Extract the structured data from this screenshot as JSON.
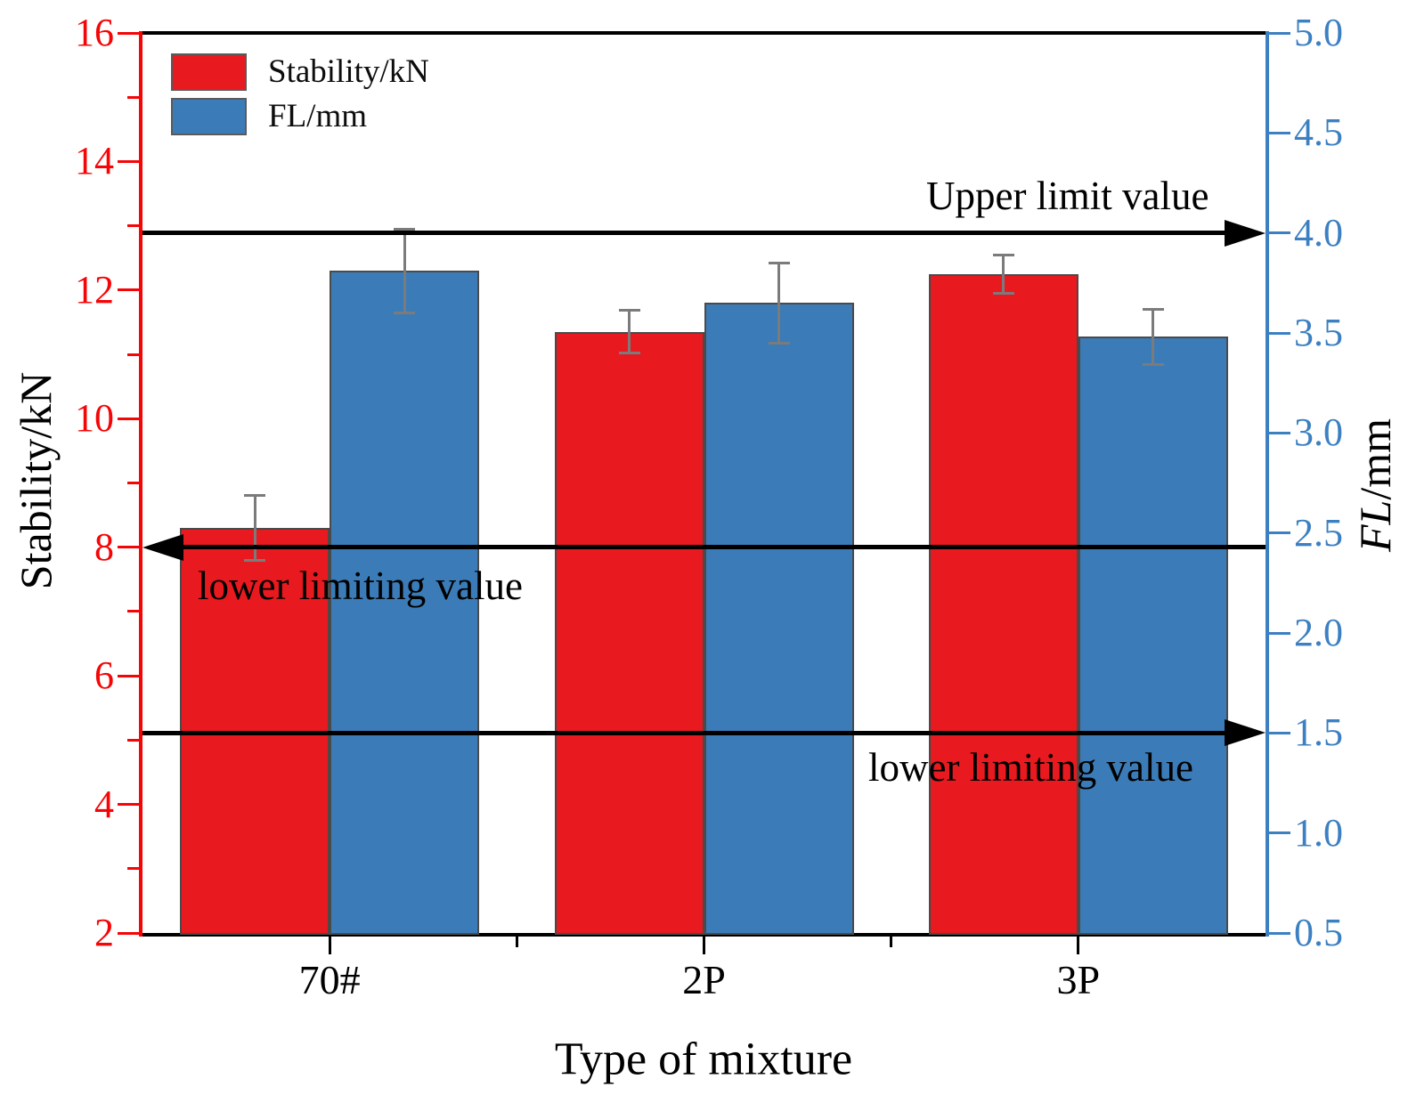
{
  "chart_data": {
    "type": "bar",
    "categories": [
      "70#",
      "2P",
      "3P"
    ],
    "series": [
      {
        "name": "Stability/kN",
        "axis": "left",
        "color": "#e8191f",
        "values": [
          8.3,
          11.35,
          12.25
        ],
        "errors": [
          0.5,
          0.33,
          0.3
        ]
      },
      {
        "name": "FL/mm",
        "axis": "right",
        "color": "#3b7cb8",
        "values": [
          3.81,
          3.65,
          3.48
        ],
        "errors": [
          0.21,
          0.2,
          0.14
        ]
      }
    ],
    "xlabel": "Type of mixture",
    "grid": false,
    "legend_position": "top-left",
    "left_axis": {
      "label": "Stability/kN",
      "color": "#f60507",
      "min": 2,
      "max": 16,
      "ticks": [
        {
          "v": 2,
          "t": "2"
        },
        {
          "v": 4,
          "t": "4"
        },
        {
          "v": 6,
          "t": "6"
        },
        {
          "v": 8,
          "t": "8"
        },
        {
          "v": 10,
          "t": "10"
        },
        {
          "v": 12,
          "t": "12"
        },
        {
          "v": 14,
          "t": "14"
        },
        {
          "v": 16,
          "t": "16"
        }
      ],
      "minor_ticks": [
        3,
        5,
        7,
        9,
        11,
        13,
        15
      ]
    },
    "right_axis": {
      "label": "FL/mm",
      "label_italic": "FL",
      "label_rest": "/mm",
      "color": "#3c80c2",
      "min": 0.5,
      "max": 5.0,
      "ticks": [
        {
          "v": 0.5,
          "t": "0.5"
        },
        {
          "v": 1.0,
          "t": "1.0"
        },
        {
          "v": 1.5,
          "t": "1.5"
        },
        {
          "v": 2.0,
          "t": "2.0"
        },
        {
          "v": 2.5,
          "t": "2.5"
        },
        {
          "v": 3.0,
          "t": "3.0"
        },
        {
          "v": 3.5,
          "t": "3.5"
        },
        {
          "v": 4.0,
          "t": "4.0"
        },
        {
          "v": 4.5,
          "t": "4.5"
        },
        {
          "v": 5.0,
          "t": "5.0"
        }
      ],
      "minor_ticks": []
    },
    "annotations": [
      {
        "text": "Upper limit value",
        "axis": "right",
        "value": 4.0,
        "arrow": "right"
      },
      {
        "text": "lower limiting value",
        "axis": "left",
        "value": 8.0,
        "arrow": "left"
      },
      {
        "text": "lower limiting value",
        "axis": "right",
        "value": 1.5,
        "arrow": "right"
      }
    ]
  }
}
